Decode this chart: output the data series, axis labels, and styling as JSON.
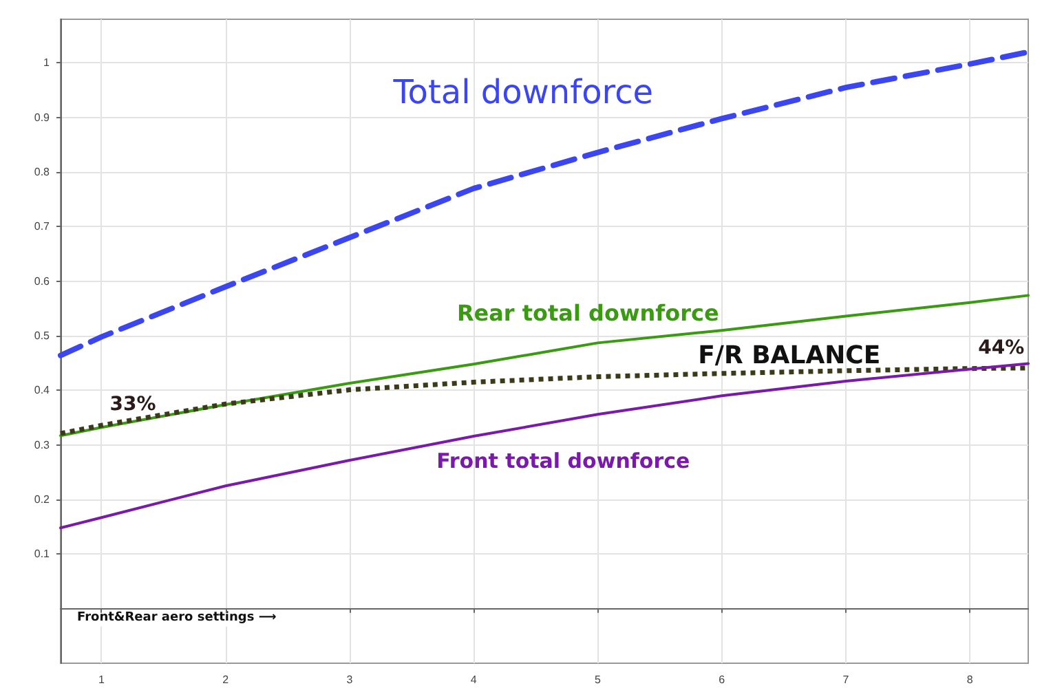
{
  "chart_data": {
    "type": "line",
    "xlabel": "Front&Rear aero settings ⟶",
    "x": [
      0.67,
      1,
      2,
      3,
      4,
      5,
      6,
      7,
      8,
      8.47
    ],
    "series": [
      {
        "name": "Total downforce",
        "color": "#3c46f0",
        "line_style": "dashed",
        "values": [
          0.464,
          0.498,
          0.59,
          0.68,
          0.77,
          0.836,
          0.898,
          0.955,
          0.998,
          1.02
        ]
      },
      {
        "name": "Rear total downforce",
        "color": "#3a9a12",
        "line_style": "solid",
        "values": [
          0.317,
          0.332,
          0.374,
          0.413,
          0.448,
          0.487,
          0.51,
          0.536,
          0.561,
          0.574
        ]
      },
      {
        "name": "F/R BALANCE",
        "color": "#3b3b1a",
        "line_style": "dotted",
        "values": [
          0.321,
          0.336,
          0.375,
          0.401,
          0.415,
          0.425,
          0.431,
          0.436,
          0.44,
          0.441
        ]
      },
      {
        "name": "Front total downforce",
        "color": "#7a1aa8",
        "line_style": "solid",
        "values": [
          0.148,
          0.167,
          0.225,
          0.272,
          0.316,
          0.356,
          0.39,
          0.417,
          0.439,
          0.449
        ]
      }
    ],
    "annotations": [
      {
        "text": "33%",
        "x": 1,
        "y": 0.336
      },
      {
        "text": "44%",
        "x": 8,
        "y": 0.44
      }
    ],
    "xlim": [
      0.67,
      8.47
    ],
    "xticks": [
      1,
      2,
      3,
      4,
      5,
      6,
      7,
      8
    ],
    "ylim": [
      -0.1,
      1.08
    ],
    "yticks": [
      0.1,
      0.2,
      0.3,
      0.4,
      0.5,
      0.6,
      0.7,
      0.8,
      0.9,
      1
    ],
    "grid": true,
    "legend": false,
    "marker": "none"
  }
}
